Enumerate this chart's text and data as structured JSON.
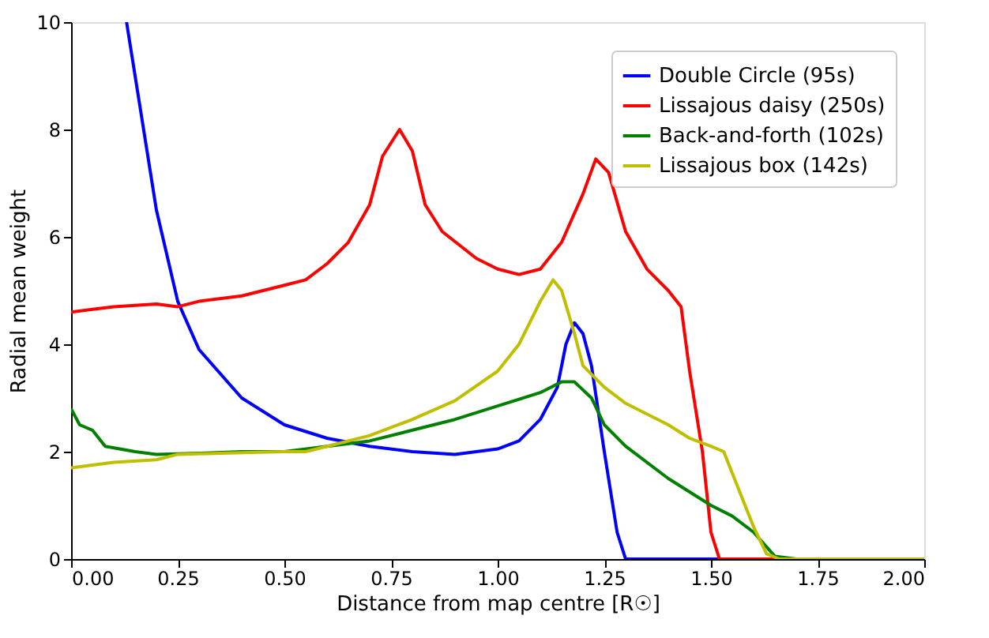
{
  "chart_data": {
    "type": "line",
    "xlabel": "Distance from map centre [R☉]",
    "ylabel": "Radial mean weight",
    "xlim": [
      0,
      2
    ],
    "ylim": [
      0,
      10
    ],
    "xticks": [
      {
        "value": 0,
        "label": "0.00"
      },
      {
        "value": 0.25,
        "label": "0.25"
      },
      {
        "value": 0.5,
        "label": "0.50"
      },
      {
        "value": 0.75,
        "label": "0.75"
      },
      {
        "value": 1,
        "label": "1.00"
      },
      {
        "value": 1.25,
        "label": "1.25"
      },
      {
        "value": 1.5,
        "label": "1.50"
      },
      {
        "value": 1.75,
        "label": "1.75"
      },
      {
        "value": 2,
        "label": "2.00"
      }
    ],
    "yticks": [
      0,
      2,
      4,
      6,
      8,
      10
    ],
    "grid": false,
    "legend": "top right",
    "line_style": "solid",
    "marker": "none",
    "series": [
      {
        "name": "Double Circle (95s)",
        "color": "#0000ff",
        "x": [
          0.13,
          0.15,
          0.2,
          0.25,
          0.3,
          0.4,
          0.5,
          0.6,
          0.7,
          0.8,
          0.9,
          1.0,
          1.05,
          1.1,
          1.14,
          1.16,
          1.18,
          1.2,
          1.22,
          1.25,
          1.28,
          1.3,
          2.0
        ],
        "values": [
          10,
          9.0,
          6.5,
          4.8,
          3.9,
          3.0,
          2.5,
          2.25,
          2.1,
          2.0,
          1.95,
          2.05,
          2.2,
          2.6,
          3.2,
          4.0,
          4.4,
          4.2,
          3.6,
          2.0,
          0.5,
          0,
          0
        ]
      },
      {
        "name": "Lissajous daisy (250s)",
        "color": "#ff0000",
        "x": [
          0,
          0.05,
          0.1,
          0.2,
          0.25,
          0.3,
          0.4,
          0.5,
          0.55,
          0.6,
          0.65,
          0.7,
          0.73,
          0.77,
          0.8,
          0.83,
          0.87,
          0.95,
          1.0,
          1.05,
          1.1,
          1.15,
          1.2,
          1.23,
          1.26,
          1.3,
          1.35,
          1.4,
          1.43,
          1.45,
          1.48,
          1.5,
          1.52,
          2.0
        ],
        "values": [
          4.6,
          4.65,
          4.7,
          4.75,
          4.7,
          4.8,
          4.9,
          5.1,
          5.2,
          5.5,
          5.9,
          6.6,
          7.5,
          8.0,
          7.6,
          6.6,
          6.1,
          5.6,
          5.4,
          5.3,
          5.4,
          5.9,
          6.8,
          7.45,
          7.2,
          6.1,
          5.4,
          5.0,
          4.7,
          3.5,
          2.0,
          0.5,
          0,
          0
        ]
      },
      {
        "name": "Back-and-forth (102s)",
        "color": "#008000",
        "x": [
          0,
          0.02,
          0.05,
          0.08,
          0.15,
          0.2,
          0.3,
          0.4,
          0.5,
          0.6,
          0.7,
          0.8,
          0.9,
          1.0,
          1.1,
          1.15,
          1.18,
          1.22,
          1.25,
          1.3,
          1.4,
          1.5,
          1.55,
          1.6,
          1.65,
          1.7,
          2.0
        ],
        "values": [
          2.8,
          2.5,
          2.4,
          2.1,
          2.0,
          1.95,
          1.97,
          2.0,
          2.0,
          2.1,
          2.2,
          2.4,
          2.6,
          2.85,
          3.1,
          3.3,
          3.3,
          3.0,
          2.5,
          2.1,
          1.5,
          1.0,
          0.8,
          0.5,
          0.05,
          0,
          0
        ]
      },
      {
        "name": "Lissajous box (142s)",
        "color": "#bfbf00",
        "x": [
          0,
          0.05,
          0.1,
          0.2,
          0.25,
          0.35,
          0.5,
          0.55,
          0.6,
          0.7,
          0.8,
          0.9,
          1.0,
          1.05,
          1.1,
          1.13,
          1.15,
          1.18,
          1.2,
          1.25,
          1.3,
          1.4,
          1.45,
          1.5,
          1.53,
          1.57,
          1.6,
          1.63,
          1.66,
          2.0
        ],
        "values": [
          1.7,
          1.75,
          1.8,
          1.85,
          1.95,
          1.97,
          2.0,
          2.0,
          2.1,
          2.3,
          2.6,
          2.95,
          3.5,
          4.0,
          4.8,
          5.2,
          5.0,
          4.2,
          3.6,
          3.2,
          2.9,
          2.5,
          2.25,
          2.1,
          2.0,
          1.2,
          0.6,
          0.1,
          0,
          0
        ]
      }
    ]
  }
}
